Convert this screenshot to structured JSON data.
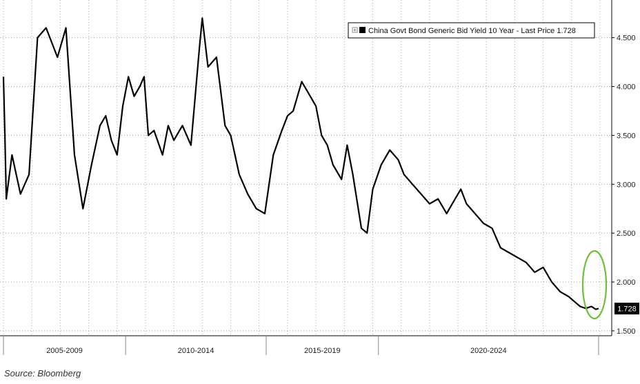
{
  "chart_data": {
    "type": "line",
    "series": [
      {
        "name": "China Govt Bond Generic Bid Yield 10 Year",
        "last_price_label": "Last Price",
        "last_value": "1.728",
        "x": [
          2004.0,
          2004.05,
          2004.1,
          2004.3,
          2004.6,
          2004.9,
          2005.2,
          2005.5,
          2005.9,
          2006.2,
          2006.5,
          2006.8,
          2007.1,
          2007.4,
          2007.6,
          2007.8,
          2008.0,
          2008.2,
          2008.4,
          2008.6,
          2008.8,
          2008.95,
          2009.1,
          2009.3,
          2009.6,
          2009.8,
          2010.0,
          2010.3,
          2010.6,
          2010.9,
          2011.0,
          2011.2,
          2011.5,
          2011.8,
          2012.0,
          2012.3,
          2012.6,
          2012.9,
          2013.2,
          2013.5,
          2013.8,
          2014.0,
          2014.2,
          2014.5,
          2014.8,
          2015.0,
          2015.2,
          2015.4,
          2015.6,
          2015.9,
          2016.1,
          2016.3,
          2016.6,
          2016.8,
          2017.0,
          2017.3,
          2017.6,
          2017.9,
          2018.1,
          2018.4,
          2018.7,
          2019.0,
          2019.3,
          2019.6,
          2019.9,
          2020.1,
          2020.3,
          2020.6,
          2020.9,
          2021.2,
          2021.5,
          2021.8,
          2022.1,
          2022.4,
          2022.7,
          2023.0,
          2023.3,
          2023.6,
          2023.9,
          2024.1,
          2024.3,
          2024.5,
          2024.7,
          2024.85,
          2024.95
        ],
        "y": [
          4.1,
          3.5,
          2.85,
          3.3,
          2.9,
          3.1,
          4.5,
          4.6,
          4.3,
          4.6,
          3.3,
          2.75,
          3.2,
          3.6,
          3.7,
          3.45,
          3.3,
          3.8,
          4.1,
          3.9,
          4.0,
          4.1,
          3.5,
          3.55,
          3.3,
          3.6,
          3.45,
          3.6,
          3.4,
          4.4,
          4.7,
          4.2,
          4.3,
          3.6,
          3.5,
          3.1,
          2.9,
          2.75,
          2.7,
          3.3,
          3.55,
          3.7,
          3.75,
          4.05,
          3.9,
          3.8,
          3.5,
          3.4,
          3.2,
          3.05,
          3.4,
          3.1,
          2.55,
          2.5,
          2.95,
          3.2,
          3.35,
          3.25,
          3.1,
          3.0,
          2.9,
          2.8,
          2.85,
          2.7,
          2.85,
          2.95,
          2.8,
          2.7,
          2.6,
          2.55,
          2.35,
          2.3,
          2.25,
          2.2,
          2.1,
          2.15,
          2.0,
          1.9,
          1.85,
          1.8,
          1.75,
          1.73,
          1.75,
          1.72,
          1.728
        ]
      }
    ],
    "y_ticks": [
      "1.500",
      "2.000",
      "2.500",
      "3.000",
      "3.500",
      "4.000",
      "4.500"
    ],
    "ylim": [
      1.45,
      4.85
    ],
    "xlim": [
      2004.0,
      2025.0
    ],
    "x_periods": [
      "2005-2009",
      "2010-2014",
      "2015-2019",
      "2020-2024"
    ],
    "x_period_bounds": [
      2004.0,
      2008.3,
      2013.25,
      2017.2,
      2024.95
    ],
    "y_axis_position": "right",
    "grid": true,
    "legend_position": "top-right",
    "line_color": "#000000",
    "highlight_color": "#6dbf3a"
  },
  "source_text": "Source: Bloomberg"
}
